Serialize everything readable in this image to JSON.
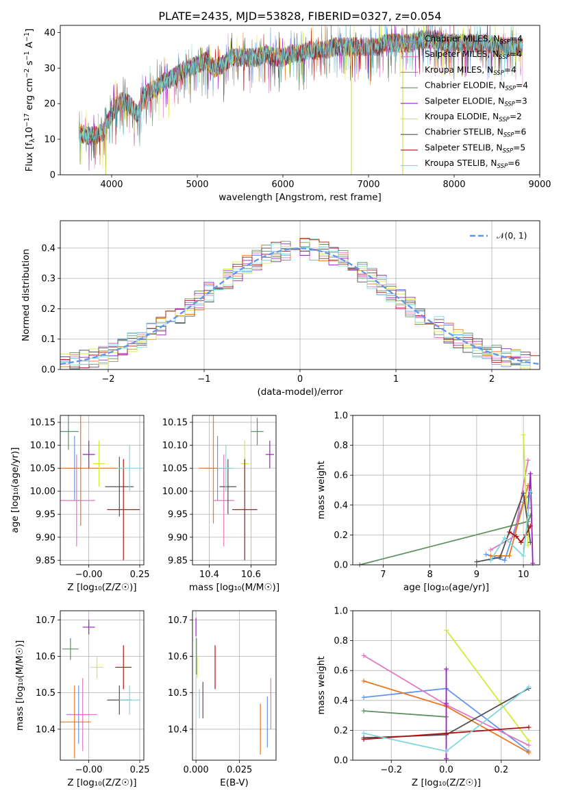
{
  "title": "PLATE=2435, MJD=53828, FIBERID=0327, z=0.054",
  "colors": {
    "Chabrier MILES": "#6495ed",
    "Salpeter MILES": "#e377c2",
    "Kroupa MILES": "#e8771e",
    "Chabrier ELODIE": "#5f8f64",
    "Salpeter ELODIE": "#9b1dbf",
    "Kroupa ELODIE": "#d4ea3a",
    "Chabrier STELIB": "#505050",
    "Salpeter STELIB": "#b01212",
    "Kroupa STELIB": "#7fd8dc",
    "normal": "#6495ed"
  },
  "chart_data": [
    {
      "id": "spectrum",
      "type": "line",
      "xlabel": "wavelength [Angstrom, rest frame]",
      "ylabel_parts": [
        "Flux [f",
        "λ",
        "10",
        "−17",
        " erg cm",
        "−2",
        " s",
        "−1",
        " A",
        "−1",
        "]"
      ],
      "xlim": [
        3400,
        9000
      ],
      "ylim": [
        0,
        42
      ],
      "xticks": [
        "4000",
        "5000",
        "6000",
        "7000",
        "8000",
        "9000"
      ],
      "yticks": [
        "0",
        "10",
        "20",
        "30",
        "40"
      ],
      "legend_position": "right",
      "legend": [
        {
          "name": "Chabrier MILES",
          "sub": "SSP",
          "n": "4"
        },
        {
          "name": "Salpeter MILES",
          "sub": "SSP",
          "n": "4"
        },
        {
          "name": "Kroupa MILES",
          "sub": "SSP",
          "n": "4"
        },
        {
          "name": "Chabrier ELODIE",
          "sub": "SSP",
          "n": "4"
        },
        {
          "name": "Salpeter ELODIE",
          "sub": "SSP",
          "n": "3"
        },
        {
          "name": "Kroupa ELODIE",
          "sub": "SSP",
          "n": "2"
        },
        {
          "name": "Chabrier STELIB",
          "sub": "SSP",
          "n": "6"
        },
        {
          "name": "Salpeter STELIB",
          "sub": "SSP",
          "n": "5"
        },
        {
          "name": "Kroupa STELIB",
          "sub": "SSP",
          "n": "6"
        }
      ],
      "continuum": [
        [
          3600,
          12
        ],
        [
          3700,
          11
        ],
        [
          3800,
          11
        ],
        [
          3900,
          12
        ],
        [
          4000,
          17
        ],
        [
          4100,
          21
        ],
        [
          4200,
          20
        ],
        [
          4300,
          17
        ],
        [
          4400,
          23
        ],
        [
          4500,
          24
        ],
        [
          4600,
          26
        ],
        [
          4700,
          27
        ],
        [
          4800,
          29
        ],
        [
          4900,
          30
        ],
        [
          5000,
          31
        ],
        [
          5100,
          32
        ],
        [
          5200,
          30
        ],
        [
          5300,
          31
        ],
        [
          5400,
          33
        ],
        [
          5500,
          33
        ],
        [
          5600,
          33
        ],
        [
          5700,
          33
        ],
        [
          5800,
          34
        ],
        [
          5900,
          33
        ],
        [
          6000,
          33
        ],
        [
          6100,
          34
        ],
        [
          6200,
          34
        ],
        [
          6300,
          35
        ],
        [
          6400,
          35
        ],
        [
          6500,
          35
        ],
        [
          6600,
          36
        ],
        [
          6700,
          36
        ],
        [
          6800,
          36
        ],
        [
          6900,
          36
        ],
        [
          7000,
          36
        ],
        [
          7100,
          36
        ],
        [
          7200,
          37
        ],
        [
          7300,
          37
        ],
        [
          7400,
          37
        ],
        [
          7500,
          37
        ],
        [
          7600,
          38
        ],
        [
          7700,
          38
        ],
        [
          7800,
          38
        ],
        [
          7900,
          37
        ],
        [
          8000,
          37
        ],
        [
          8100,
          37
        ],
        [
          8200,
          37
        ],
        [
          8300,
          37
        ],
        [
          8400,
          37
        ],
        [
          8500,
          36
        ],
        [
          8600,
          36
        ],
        [
          8700,
          36
        ],
        [
          8800,
          36
        ]
      ],
      "spikes": [
        [
          3930,
          0
        ],
        [
          6563,
          42
        ],
        [
          6800,
          0
        ],
        [
          7400,
          0
        ]
      ]
    },
    {
      "id": "residuals",
      "type": "step",
      "xlabel": "(data-model)/error",
      "ylabel": "Normed distribution",
      "xlim": [
        -2.5,
        2.5
      ],
      "ylim": [
        0,
        0.49
      ],
      "xticks": [
        "−2",
        "−1",
        "0",
        "1",
        "2"
      ],
      "yticks": [
        "0.0",
        "0.1",
        "0.2",
        "0.3",
        "0.4"
      ],
      "grid": true,
      "legend_position": "upper right",
      "reference": {
        "label": "𝒩(0, 1)",
        "mean": 0,
        "sigma": 1
      }
    },
    {
      "id": "age-vs-Z",
      "type": "scatter",
      "xlabel": "Z [log₁₀(Z/Z☉)]",
      "ylabel": "age  [log₁₀(age/yr)]",
      "xlim": [
        -0.14,
        0.27
      ],
      "ylim": [
        9.84,
        10.165
      ],
      "xticks": [
        -0.0,
        0.25
      ],
      "xtick_labels": [
        "−0.00",
        "0.25"
      ],
      "yticks": [
        9.85,
        9.9,
        9.95,
        10.0,
        10.05,
        10.1,
        10.15
      ],
      "ytick_labels": [
        "9.85",
        "9.90",
        "9.95",
        "10.00",
        "10.05",
        "10.10",
        "10.15"
      ],
      "grid": true,
      "points": [
        {
          "c": "Chabrier MILES",
          "x": -0.07,
          "y": 10.05,
          "xerr": 0.05,
          "yerr": 0.07
        },
        {
          "c": "Salpeter MILES",
          "x": -0.06,
          "y": 9.98,
          "xerr": 0.09,
          "yerr": 0.1
        },
        {
          "c": "Kroupa MILES",
          "x": -0.04,
          "y": 10.05,
          "xerr": 0.22,
          "yerr": 0.125
        },
        {
          "c": "Chabrier ELODIE",
          "x": -0.1,
          "y": 10.13,
          "xerr": 0.05,
          "yerr": 0.04
        },
        {
          "c": "Salpeter ELODIE",
          "x": 0.0,
          "y": 10.08,
          "xerr": 0.03,
          "yerr": 0.03
        },
        {
          "c": "Kroupa ELODIE",
          "x": 0.05,
          "y": 10.06,
          "xerr": 0.03,
          "yerr": 0.05
        },
        {
          "c": "Chabrier STELIB",
          "x": 0.15,
          "y": 10.01,
          "xerr": 0.07,
          "yerr": 0.065
        },
        {
          "c": "Salpeter STELIB",
          "x": 0.17,
          "y": 9.96,
          "xerr": 0.08,
          "yerr": 0.11
        },
        {
          "c": "Kroupa STELIB",
          "x": 0.2,
          "y": 10.05,
          "xerr": 0.06,
          "yerr": 0.05
        }
      ]
    },
    {
      "id": "age-vs-mass",
      "type": "scatter",
      "xlabel": "mass [log₁₀(M/M☉)]",
      "ylabel": "",
      "xlim": [
        10.32,
        10.72
      ],
      "ylim": [
        9.84,
        10.165
      ],
      "xticks": [
        10.4,
        10.6
      ],
      "xtick_labels": [
        "10.4",
        "10.6"
      ],
      "yticks": [
        9.85,
        9.9,
        9.95,
        10.0,
        10.05,
        10.1,
        10.15
      ],
      "ytick_labels": [
        "9.85",
        "9.90",
        "9.95",
        "10.00",
        "10.05",
        "10.10",
        "10.15"
      ],
      "grid": true,
      "points": [
        {
          "c": "Chabrier MILES",
          "x": 10.44,
          "y": 10.05,
          "xerr": 0.06,
          "yerr": 0.07
        },
        {
          "c": "Salpeter MILES",
          "x": 10.47,
          "y": 9.98,
          "xerr": 0.05,
          "yerr": 0.1
        },
        {
          "c": "Kroupa MILES",
          "x": 10.42,
          "y": 10.05,
          "xerr": 0.07,
          "yerr": 0.12
        },
        {
          "c": "Chabrier ELODIE",
          "x": 10.63,
          "y": 10.13,
          "xerr": 0.03,
          "yerr": 0.03
        },
        {
          "c": "Salpeter ELODIE",
          "x": 10.69,
          "y": 10.08,
          "xerr": 0.02,
          "yerr": 0.03
        },
        {
          "c": "Kroupa ELODIE",
          "x": 10.57,
          "y": 10.06,
          "xerr": 0.02,
          "yerr": 0.05
        },
        {
          "c": "Chabrier STELIB",
          "x": 10.49,
          "y": 10.01,
          "xerr": 0.04,
          "yerr": 0.06
        },
        {
          "c": "Salpeter STELIB",
          "x": 10.57,
          "y": 9.96,
          "xerr": 0.06,
          "yerr": 0.11
        },
        {
          "c": "Kroupa STELIB",
          "x": 10.48,
          "y": 10.05,
          "xerr": 0.04,
          "yerr": 0.05
        }
      ]
    },
    {
      "id": "weight-vs-age",
      "type": "line",
      "xlabel": "age  [log₁₀(age/yr)]",
      "ylabel": "mass weight",
      "xlim": [
        6.35,
        10.35
      ],
      "ylim": [
        0,
        1.0
      ],
      "xticks": [
        7,
        8,
        9,
        10
      ],
      "xtick_labels": [
        "7",
        "8",
        "9",
        "10"
      ],
      "yticks": [
        0,
        0.2,
        0.4,
        0.6,
        0.8,
        1.0
      ],
      "ytick_labels": [
        "0.0",
        "0.2",
        "0.4",
        "0.6",
        "0.8",
        "1.0"
      ],
      "grid": true,
      "series": [
        {
          "c": "Chabrier MILES",
          "x": [
            9.2,
            9.6,
            10.0,
            10.15
          ],
          "y": [
            0.07,
            0.03,
            0.42,
            0.48
          ]
        },
        {
          "c": "Salpeter MILES",
          "x": [
            9.3,
            9.8,
            10.1
          ],
          "y": [
            0.1,
            0.19,
            0.7
          ]
        },
        {
          "c": "Kroupa MILES",
          "x": [
            9.3,
            9.7,
            10.1
          ],
          "y": [
            0.06,
            0.06,
            0.53
          ]
        },
        {
          "c": "Chabrier ELODIE",
          "x": [
            6.5,
            10.1,
            10.15
          ],
          "y": [
            0.0,
            0.29,
            0.33
          ]
        },
        {
          "c": "Salpeter ELODIE",
          "x": [
            10.1,
            10.15,
            10.2
          ],
          "y": [
            0.38,
            0.61,
            0.01
          ]
        },
        {
          "c": "Kroupa ELODIE",
          "x": [
            10.0,
            10.1
          ],
          "y": [
            0.87,
            0.13
          ]
        },
        {
          "c": "Chabrier STELIB",
          "x": [
            9.0,
            9.5,
            10.0,
            10.15
          ],
          "y": [
            0.02,
            0.05,
            0.48,
            0.15
          ]
        },
        {
          "c": "Salpeter STELIB",
          "x": [
            9.7,
            9.85,
            9.95,
            10.05,
            10.15
          ],
          "y": [
            0.22,
            0.19,
            0.15,
            0.2,
            0.26
          ]
        },
        {
          "c": "Kroupa STELIB",
          "x": [
            9.3,
            9.6,
            10.0,
            10.15
          ],
          "y": [
            0.03,
            0.18,
            0.06,
            0.49
          ]
        }
      ]
    },
    {
      "id": "mass-vs-Z",
      "type": "scatter",
      "xlabel": "Z [log₁₀(Z/Z☉)]",
      "ylabel": "mass [log₁₀(M/M☉)]",
      "xlim": [
        -0.14,
        0.27
      ],
      "ylim": [
        10.315,
        10.725
      ],
      "xticks": [
        -0.0,
        0.25
      ],
      "xtick_labels": [
        "−0.00",
        "0.25"
      ],
      "yticks": [
        10.4,
        10.5,
        10.6,
        10.7
      ],
      "ytick_labels": [
        "10.4",
        "10.5",
        "10.6",
        "10.7"
      ],
      "grid": true,
      "points": [
        {
          "c": "Chabrier MILES",
          "x": -0.05,
          "y": 10.44,
          "xerr": 0.06,
          "yerr": 0.08
        },
        {
          "c": "Salpeter MILES",
          "x": -0.03,
          "y": 10.44,
          "xerr": 0.07,
          "yerr": 0.1
        },
        {
          "c": "Kroupa MILES",
          "x": -0.07,
          "y": 10.42,
          "xerr": 0.08,
          "yerr": 0.1
        },
        {
          "c": "Chabrier ELODIE",
          "x": -0.09,
          "y": 10.62,
          "xerr": 0.04,
          "yerr": 0.03
        },
        {
          "c": "Salpeter ELODIE",
          "x": 0.0,
          "y": 10.68,
          "xerr": 0.03,
          "yerr": 0.02
        },
        {
          "c": "Kroupa ELODIE",
          "x": 0.04,
          "y": 10.57,
          "xerr": 0.03,
          "yerr": 0.03
        },
        {
          "c": "Chabrier STELIB",
          "x": 0.15,
          "y": 10.48,
          "xerr": 0.06,
          "yerr": 0.04
        },
        {
          "c": "Salpeter STELIB",
          "x": 0.17,
          "y": 10.57,
          "xerr": 0.04,
          "yerr": 0.06
        },
        {
          "c": "Kroupa STELIB",
          "x": 0.2,
          "y": 10.48,
          "xerr": 0.05,
          "yerr": 0.04
        }
      ]
    },
    {
      "id": "mass-vs-EBV",
      "type": "scatter",
      "xlabel": "E(B-V)",
      "ylabel": "",
      "xlim": [
        -0.002,
        0.046
      ],
      "ylim": [
        10.315,
        10.725
      ],
      "xticks": [
        0.0,
        0.025
      ],
      "xtick_labels": [
        "0.000",
        "0.025"
      ],
      "yticks": [
        10.4,
        10.5,
        10.6,
        10.7
      ],
      "ytick_labels": [
        "10.4",
        "10.5",
        "10.6",
        "10.7"
      ],
      "grid": true,
      "points": [
        {
          "c": "Chabrier MILES",
          "x": 0.041,
          "y": 10.42,
          "xerr": 0.0,
          "yerr": 0.07
        },
        {
          "c": "Salpeter MILES",
          "x": 0.043,
          "y": 10.47,
          "xerr": 0.0,
          "yerr": 0.07
        },
        {
          "c": "Kroupa MILES",
          "x": 0.037,
          "y": 10.4,
          "xerr": 0.0,
          "yerr": 0.07
        },
        {
          "c": "Chabrier ELODIE",
          "x": 0.0003,
          "y": 10.6,
          "xerr": 0.0,
          "yerr": 0.05
        },
        {
          "c": "Salpeter ELODIE",
          "x": 0.0,
          "y": 10.68,
          "xerr": 0.0,
          "yerr": 0.025
        },
        {
          "c": "Kroupa ELODIE",
          "x": 0.0007,
          "y": 10.57,
          "xerr": 0.0,
          "yerr": 0.03
        },
        {
          "c": "Chabrier STELIB",
          "x": 0.004,
          "y": 10.48,
          "xerr": 0.0,
          "yerr": 0.05
        },
        {
          "c": "Salpeter STELIB",
          "x": 0.011,
          "y": 10.57,
          "xerr": 0.0,
          "yerr": 0.06
        },
        {
          "c": "Kroupa STELIB",
          "x": 0.002,
          "y": 10.47,
          "xerr": 0.0,
          "yerr": 0.04
        }
      ]
    },
    {
      "id": "weight-vs-Z",
      "type": "line",
      "xlabel": "Z [log₁₀(Z/Z☉)]",
      "ylabel": "mass weight",
      "xlim": [
        -0.34,
        0.34
      ],
      "ylim": [
        0,
        1.0
      ],
      "xticks": [
        -0.2,
        0.0,
        0.2
      ],
      "xtick_labels": [
        "−0.2",
        "0.0",
        "0.2"
      ],
      "yticks": [
        0,
        0.2,
        0.4,
        0.6,
        0.8,
        1.0
      ],
      "ytick_labels": [
        "0.0",
        "0.2",
        "0.4",
        "0.6",
        "0.8",
        "1.0"
      ],
      "grid": true,
      "series": [
        {
          "c": "Chabrier MILES",
          "x": [
            -0.3,
            0.0,
            0.3
          ],
          "y": [
            0.42,
            0.48,
            0.06
          ]
        },
        {
          "c": "Salpeter MILES",
          "x": [
            -0.3,
            0.0,
            0.3
          ],
          "y": [
            0.7,
            0.37,
            0.1
          ]
        },
        {
          "c": "Kroupa MILES",
          "x": [
            -0.3,
            0.0,
            0.3
          ],
          "y": [
            0.53,
            0.36,
            0.05
          ]
        },
        {
          "c": "Chabrier ELODIE",
          "x": [
            -0.3,
            0.0
          ],
          "y": [
            0.33,
            0.29
          ]
        },
        {
          "c": "Salpeter ELODIE",
          "x": [
            0.0,
            0.0,
            0.0
          ],
          "y": [
            0.61,
            0.38,
            0.01
          ]
        },
        {
          "c": "Kroupa ELODIE",
          "x": [
            0.0,
            0.3
          ],
          "y": [
            0.87,
            0.13
          ]
        },
        {
          "c": "Chabrier STELIB",
          "x": [
            -0.3,
            0.0,
            0.3
          ],
          "y": [
            0.15,
            0.17,
            0.48
          ]
        },
        {
          "c": "Salpeter STELIB",
          "x": [
            -0.3,
            0.0,
            0.3
          ],
          "y": [
            0.14,
            0.18,
            0.22
          ]
        },
        {
          "c": "Kroupa STELIB",
          "x": [
            -0.3,
            0.0,
            0.3
          ],
          "y": [
            0.18,
            0.06,
            0.49
          ]
        }
      ]
    }
  ]
}
